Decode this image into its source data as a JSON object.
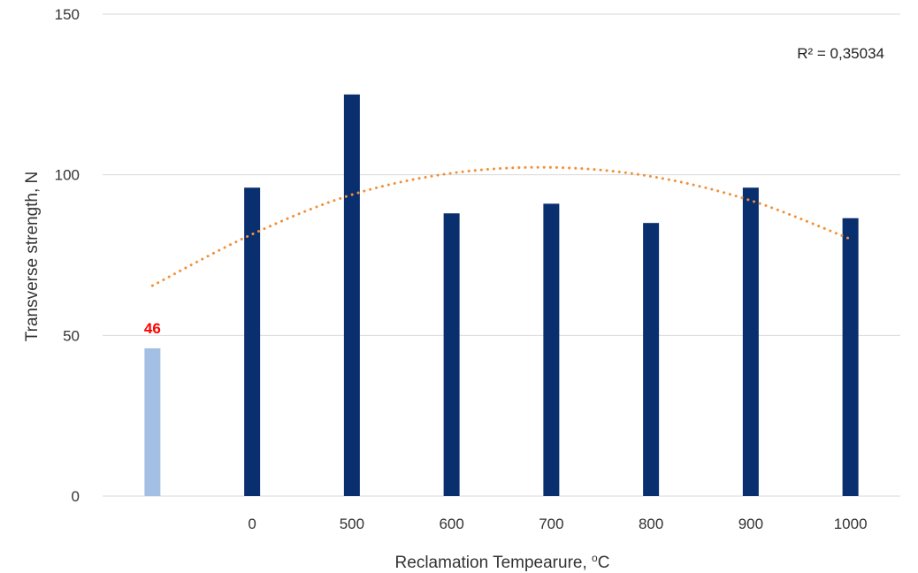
{
  "chart_data": {
    "type": "bar",
    "categories": [
      "",
      "0",
      "500",
      "600",
      "700",
      "800",
      "900",
      "1000"
    ],
    "values": [
      46,
      96,
      125,
      88,
      91,
      85,
      96,
      86.5
    ],
    "bar_colors": [
      "#a3bfe3",
      "#0a2f6e",
      "#0a2f6e",
      "#0a2f6e",
      "#0a2f6e",
      "#0a2f6e",
      "#0a2f6e",
      "#0a2f6e"
    ],
    "data_labels": [
      {
        "index": 0,
        "text": "46",
        "color": "#ff0000"
      }
    ],
    "xlabel": "Reclamation Tempearure, ",
    "xlabel_unit_sup": "o",
    "xlabel_unit": "C",
    "ylabel": "Transverse strength, N",
    "ylim": [
      0,
      150
    ],
    "yticks": [
      0,
      50,
      100,
      150
    ],
    "grid": true,
    "gridline_color": "#d9d9d9",
    "trendline": {
      "type": "polynomial",
      "style": "dotted",
      "color": "#f0913a",
      "values": [
        65.5,
        81.5,
        93.8,
        100.5,
        102.3,
        99.5,
        92.0,
        80.0
      ],
      "r2_text": "R² = 0,35034"
    }
  }
}
